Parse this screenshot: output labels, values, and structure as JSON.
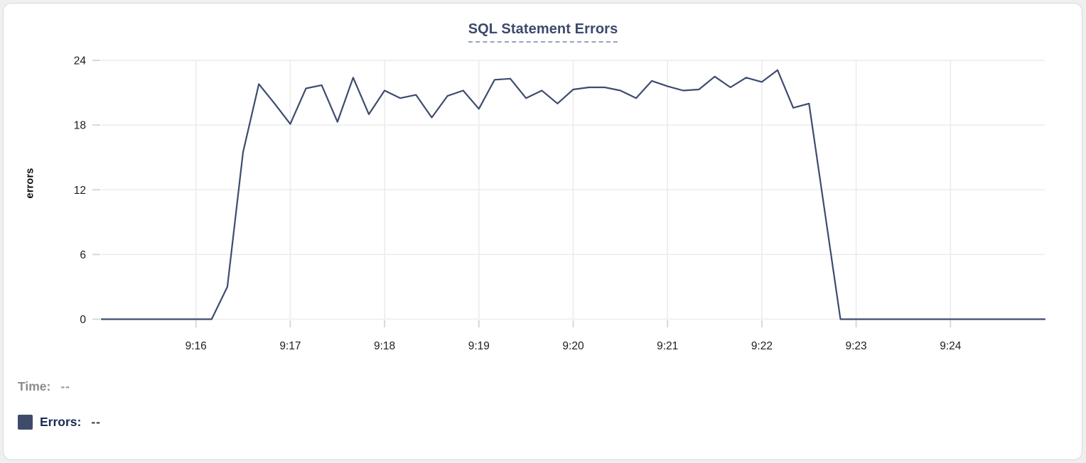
{
  "colors": {
    "title": "#3b4a6b",
    "grid": "#ececec",
    "tick": "#d8d8d8",
    "axis_text": "#1c1c1c",
    "line": "#3d4c6e",
    "card_border": "#d9d9d9"
  },
  "chart_data": {
    "type": "line",
    "title": "SQL Statement Errors",
    "xlabel": "",
    "ylabel": "errors",
    "ylim": [
      0,
      24
    ],
    "y_ticks": [
      0,
      6,
      12,
      18,
      24
    ],
    "x_tick_labels": [
      "9:16",
      "9:17",
      "9:18",
      "9:19",
      "9:20",
      "9:21",
      "9:22",
      "9:23",
      "9:24"
    ],
    "x_range": [
      "9:15:00",
      "9:25:00"
    ],
    "x_start": "9:15:00",
    "x_interval_seconds": 10,
    "grid": true,
    "legend_position": "bottom-left",
    "series": [
      {
        "name": "Errors",
        "color": "#3d4c6e",
        "values": [
          0,
          0,
          0,
          0,
          0,
          0,
          0,
          0,
          3,
          15.5,
          21.8,
          20,
          18.1,
          21.4,
          21.7,
          18.3,
          22.4,
          19,
          21.2,
          20.5,
          20.8,
          18.7,
          20.7,
          21.2,
          19.5,
          22.2,
          22.3,
          20.5,
          21.2,
          20,
          21.3,
          21.5,
          21.5,
          21.2,
          20.5,
          22.1,
          21.6,
          21.2,
          21.3,
          22.5,
          21.5,
          22.4,
          22,
          23.1,
          19.6,
          20,
          10,
          0,
          0,
          0,
          0,
          0,
          0,
          0,
          0,
          0,
          0,
          0,
          0,
          0,
          0
        ]
      }
    ]
  },
  "readout": {
    "time_label": "Time:",
    "time_value": "--",
    "errors_label": "Errors:",
    "errors_value": "--",
    "swatch_color": "#3e4c69"
  }
}
